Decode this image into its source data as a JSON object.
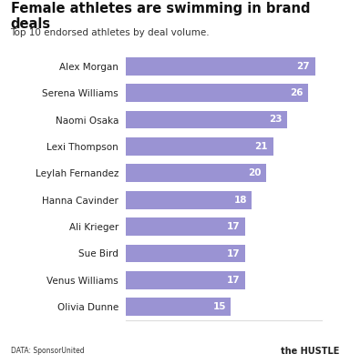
{
  "chart_data": {
    "type": "bar",
    "orientation": "horizontal",
    "title": "Female athletes are swimming in brand deals",
    "subtitle": "Top 10 endorsed athletes by deal volume.",
    "annotations": [
      "DATA: SponsorUnited",
      "the HUSTLE"
    ],
    "categories": [
      "Alex Morgan",
      "Serena Williams",
      "Naomi Osaka",
      "Lexi Thompson",
      "Leylah Fernandez",
      "Hanna Cavinder",
      "Ali Krieger",
      "Sue Bird",
      "Venus Williams",
      "Olivia Dunne"
    ],
    "values": [
      27,
      26,
      23,
      21,
      20,
      18,
      17,
      17,
      17,
      15
    ],
    "color": "#9a93d3",
    "xlim": [
      0,
      28
    ],
    "xticks": [],
    "grid": false,
    "data_labels": true,
    "tick_labels": "y"
  }
}
